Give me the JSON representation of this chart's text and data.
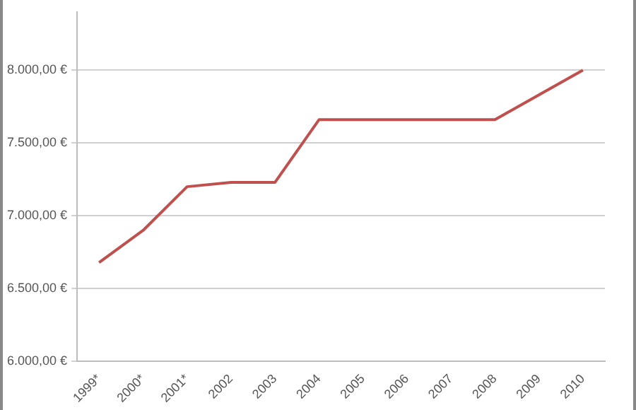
{
  "chart_data": {
    "type": "line",
    "categories": [
      "1999*",
      "2000*",
      "2001*",
      "2002",
      "2003",
      "2004",
      "2005",
      "2006",
      "2007",
      "2008",
      "2009",
      "2010"
    ],
    "series": [
      {
        "color": "#c0504d",
        "values": [
          6680,
          6900,
          7200,
          7230,
          7230,
          7660,
          7660,
          7660,
          7660,
          7660,
          7830,
          8000
        ]
      }
    ],
    "ylim": [
      6000,
      8400
    ],
    "yticks": [
      {
        "value": 6000,
        "label": "6.000,00 €"
      },
      {
        "value": 6500,
        "label": "6.500,00 €"
      },
      {
        "value": 7000,
        "label": "7.000,00 €"
      },
      {
        "value": 7500,
        "label": "7.500,00 €"
      },
      {
        "value": 8000,
        "label": "8.000,00 €"
      }
    ],
    "grid": "y",
    "legend": false,
    "marker": "none",
    "line_style": "solid"
  }
}
